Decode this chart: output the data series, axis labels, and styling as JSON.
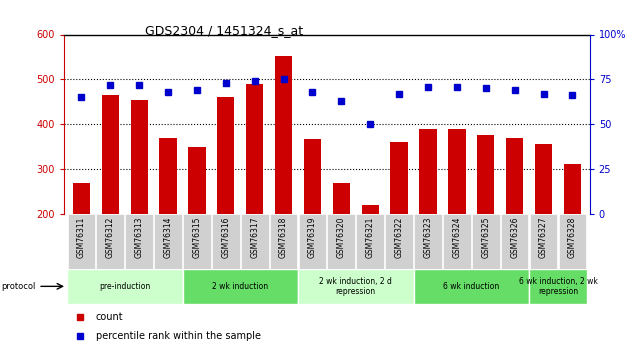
{
  "title": "GDS2304 / 1451324_s_at",
  "samples": [
    "GSM76311",
    "GSM76312",
    "GSM76313",
    "GSM76314",
    "GSM76315",
    "GSM76316",
    "GSM76317",
    "GSM76318",
    "GSM76319",
    "GSM76320",
    "GSM76321",
    "GSM76322",
    "GSM76323",
    "GSM76324",
    "GSM76325",
    "GSM76326",
    "GSM76327",
    "GSM76328"
  ],
  "counts": [
    270,
    465,
    455,
    370,
    350,
    460,
    490,
    553,
    368,
    270,
    220,
    360,
    390,
    390,
    375,
    370,
    355,
    312
  ],
  "percentile_ranks": [
    65,
    72,
    72,
    68,
    69,
    73,
    74,
    75,
    68,
    63,
    50,
    67,
    71,
    71,
    70,
    69,
    67,
    66
  ],
  "ylim_left": [
    200,
    600
  ],
  "ylim_right": [
    0,
    100
  ],
  "left_ticks": [
    200,
    300,
    400,
    500,
    600
  ],
  "right_ticks": [
    0,
    25,
    50,
    75,
    100
  ],
  "right_tick_labels": [
    "0",
    "25",
    "50",
    "75",
    "100%"
  ],
  "bar_color": "#cc0000",
  "dot_color": "#0000cc",
  "grid_color": "#000000",
  "bg_color": "#ffffff",
  "protocol_groups": [
    {
      "label": "pre-induction",
      "start": 0,
      "end": 3,
      "color": "#ccffcc"
    },
    {
      "label": "2 wk induction",
      "start": 4,
      "end": 7,
      "color": "#66dd66"
    },
    {
      "label": "2 wk induction, 2 d\nrepression",
      "start": 8,
      "end": 11,
      "color": "#ccffcc"
    },
    {
      "label": "6 wk induction",
      "start": 12,
      "end": 15,
      "color": "#66dd66"
    },
    {
      "label": "6 wk induction, 2 wk\nrepression",
      "start": 16,
      "end": 17,
      "color": "#66dd66"
    }
  ],
  "tick_label_color_left": "#cc0000",
  "tick_label_color_right": "#0000cc",
  "xtick_bg_color": "#d0d0d0"
}
